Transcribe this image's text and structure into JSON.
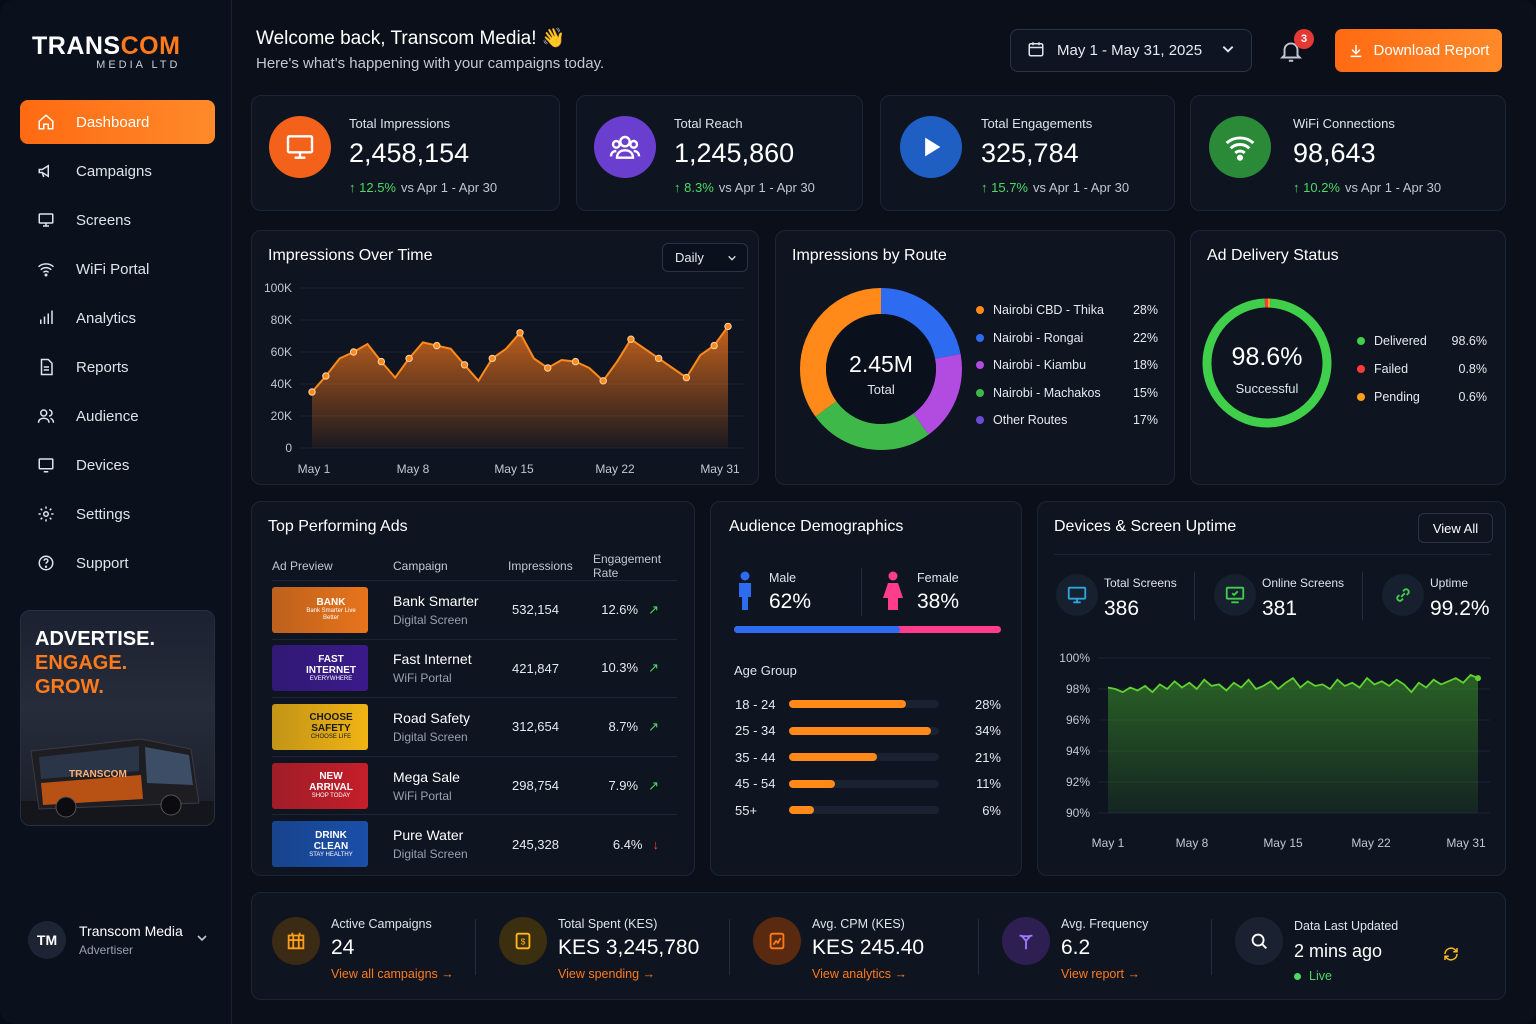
{
  "brand": {
    "name_part1": "TRANS",
    "name_part2": "COM",
    "subtitle": "MEDIA LTD"
  },
  "sidebar": {
    "items": [
      {
        "label": "Dashboard",
        "icon": "home-icon",
        "active": true
      },
      {
        "label": "Campaigns",
        "icon": "megaphone-icon"
      },
      {
        "label": "Screens",
        "icon": "monitor-icon"
      },
      {
        "label": "WiFi Portal",
        "icon": "wifi-icon"
      },
      {
        "label": "Analytics",
        "icon": "bar-chart-icon"
      },
      {
        "label": "Reports",
        "icon": "document-icon"
      },
      {
        "label": "Audience",
        "icon": "users-icon"
      },
      {
        "label": "Devices",
        "icon": "device-icon"
      },
      {
        "label": "Settings",
        "icon": "gear-icon"
      },
      {
        "label": "Support",
        "icon": "help-icon"
      }
    ],
    "promo": {
      "line1": "ADVERTISE.",
      "line2": "ENGAGE.",
      "line3": "GROW.",
      "bus_text": "TRANSCOM"
    },
    "user": {
      "initials": "TM",
      "name": "Transcom Media",
      "role": "Advertiser"
    }
  },
  "header": {
    "title": "Welcome back, Transcom Media! 👋",
    "subtitle": "Here's what's happening with your campaigns today.",
    "date_range": "May 1 - May 31, 2025",
    "notifications": "3",
    "download_label": "Download Report"
  },
  "kpis": [
    {
      "label": "Total Impressions",
      "value": "2,458,154",
      "change": "12.5%",
      "vs": "vs Apr 1 - Apr 30",
      "color": "#f4611b",
      "icon": "monitor-icon"
    },
    {
      "label": "Total Reach",
      "value": "1,245,860",
      "change": "8.3%",
      "vs": "vs Apr 1 - Apr 30",
      "color": "#6a3fd0",
      "icon": "users-icon"
    },
    {
      "label": "Total Engagements",
      "value": "325,784",
      "change": "15.7%",
      "vs": "vs Apr 1 - Apr 30",
      "color": "#1f5fc4",
      "icon": "play-icon"
    },
    {
      "label": "WiFi Connections",
      "value": "98,643",
      "change": "10.2%",
      "vs": "vs Apr 1 - Apr 30",
      "color": "#2a8a38",
      "icon": "wifi-icon"
    }
  ],
  "impressions_chart": {
    "title": "Impressions Over Time",
    "granularity": "Daily",
    "chart_data": {
      "type": "area",
      "x": [
        1,
        2,
        3,
        4,
        5,
        6,
        7,
        8,
        9,
        10,
        11,
        12,
        13,
        14,
        15,
        16,
        17,
        18,
        19,
        20,
        21,
        22,
        23,
        24,
        25,
        26,
        27,
        28,
        29,
        30,
        31
      ],
      "values": [
        35000,
        45000,
        56000,
        60000,
        65000,
        54000,
        44000,
        56000,
        66000,
        64000,
        62000,
        52000,
        42000,
        56000,
        62000,
        72000,
        56000,
        50000,
        55000,
        54000,
        50000,
        42000,
        54000,
        68000,
        62000,
        56000,
        50000,
        44000,
        58000,
        64000,
        76000
      ],
      "x_tick_labels": [
        "May 1",
        "May 8",
        "May 15",
        "May 22",
        "May 31"
      ],
      "y_tick_labels": [
        "100K",
        "80K",
        "60K",
        "40K",
        "20K",
        "0"
      ],
      "ylim": [
        0,
        100000
      ],
      "color": "#ff8a1a"
    }
  },
  "route_chart": {
    "title": "Impressions by Route",
    "center_value": "2.45M",
    "center_label": "Total",
    "chart_data": {
      "type": "pie",
      "categories": [
        "Nairobi CBD - Thika",
        "Nairobi - Rongai",
        "Nairobi - Kiambu",
        "Nairobi - Machakos",
        "Other Routes"
      ],
      "values": [
        28,
        22,
        18,
        15,
        17
      ],
      "labels": [
        "28%",
        "22%",
        "18%",
        "15%",
        "17%"
      ],
      "colors": [
        "#ff8a1a",
        "#2d6cf0",
        "#b24be0",
        "#3fb84a",
        "#6b4bd6"
      ],
      "drawn_order_colors": [
        "#2d6cf0",
        "#b24be0",
        "#3fb84a",
        "#ff8a1a"
      ]
    }
  },
  "delivery": {
    "title": "Ad Delivery Status",
    "center_value": "98.6%",
    "center_label": "Successful",
    "chart_data": {
      "type": "pie",
      "categories": [
        "Delivered",
        "Failed",
        "Pending"
      ],
      "values": [
        98.6,
        0.8,
        0.6
      ],
      "labels": [
        "98.6%",
        "0.8%",
        "0.6%"
      ],
      "colors": [
        "#3fcf4a",
        "#ff3b3b",
        "#ff9f1a"
      ]
    }
  },
  "top_ads": {
    "title": "Top Performing Ads",
    "columns": [
      "Ad Preview",
      "Campaign",
      "Impressions",
      "Engagement Rate"
    ],
    "rows": [
      {
        "thumb": "BANK",
        "thumb_sub": "Bank Smarter Live Better",
        "name": "Bank Smarter",
        "channel": "Digital Screen",
        "impressions": "532,154",
        "rate": "12.6%",
        "trend": "up",
        "bg": "#e8741c",
        "fg": "#fff"
      },
      {
        "thumb": "FAST INTERNET",
        "thumb_sub": "EVERYWHERE",
        "name": "Fast Internet",
        "channel": "WiFi Portal",
        "impressions": "421,847",
        "rate": "10.3%",
        "trend": "up",
        "bg": "#3a1a8a",
        "fg": "#fff"
      },
      {
        "thumb": "CHOOSE SAFETY",
        "thumb_sub": "CHOOSE LIFE",
        "name": "Road Safety",
        "channel": "Digital Screen",
        "impressions": "312,654",
        "rate": "8.7%",
        "trend": "up",
        "bg": "#f0b414",
        "fg": "#1a1a1a"
      },
      {
        "thumb": "NEW ARRIVAL",
        "thumb_sub": "SHOP TODAY",
        "name": "Mega Sale",
        "channel": "WiFi Portal",
        "impressions": "298,754",
        "rate": "7.9%",
        "trend": "up",
        "bg": "#c41f2a",
        "fg": "#fff"
      },
      {
        "thumb": "DRINK CLEAN",
        "thumb_sub": "STAY HEALTHY",
        "name": "Pure Water",
        "channel": "Digital Screen",
        "impressions": "245,328",
        "rate": "6.4%",
        "trend": "down",
        "bg": "#1a4fa8",
        "fg": "#fff"
      }
    ]
  },
  "demographics": {
    "title": "Audience Demographics",
    "male_label": "Male",
    "male_value": "62%",
    "male_pct": 62,
    "female_label": "Female",
    "female_value": "38%",
    "age_title": "Age Group",
    "ages": [
      {
        "label": "18 - 24",
        "value": "28%",
        "pct": 28
      },
      {
        "label": "25 - 34",
        "value": "34%",
        "pct": 34
      },
      {
        "label": "35 - 44",
        "value": "21%",
        "pct": 21
      },
      {
        "label": "45 - 54",
        "value": "11%",
        "pct": 11
      },
      {
        "label": "55+",
        "value": "6%",
        "pct": 6
      }
    ]
  },
  "uptime": {
    "title": "Devices & Screen Uptime",
    "view_all": "View All",
    "stats": [
      {
        "label": "Total Screens",
        "value": "386",
        "icon": "monitor-icon",
        "color": "#2aa7e0"
      },
      {
        "label": "Online Screens",
        "value": "381",
        "icon": "monitor-check-icon",
        "color": "#3fcf4a"
      },
      {
        "label": "Uptime",
        "value": "99.2%",
        "icon": "link-icon",
        "color": "#3fcf4a"
      }
    ],
    "chart_data": {
      "type": "area",
      "x_tick_labels": [
        "May 1",
        "May 8",
        "May 15",
        "May 22",
        "May 31"
      ],
      "y_tick_labels": [
        "100%",
        "98%",
        "96%",
        "94%",
        "92%",
        "90%"
      ],
      "ylim": [
        90,
        100
      ],
      "values": [
        98.1,
        98.0,
        97.8,
        98.1,
        97.9,
        98.2,
        97.8,
        98.3,
        98.0,
        98.5,
        98.1,
        98.4,
        98.0,
        98.6,
        98.2,
        98.3,
        97.9,
        98.4,
        98.1,
        98.6,
        98.0,
        98.2,
        98.5,
        98.0,
        98.4,
        98.7,
        98.1,
        98.5,
        98.2,
        98.3,
        98.0,
        98.6,
        98.2,
        98.4,
        98.1,
        98.7,
        98.3,
        98.5,
        98.2,
        98.6,
        98.3,
        97.8,
        98.4,
        98.1,
        98.6,
        98.3,
        98.5,
        98.7,
        98.4,
        98.9,
        98.7
      ],
      "color": "#5fd12f"
    }
  },
  "bottom_stats": [
    {
      "label": "Active Campaigns",
      "value": "24",
      "link": "View all campaigns →",
      "icon": "grid-icon",
      "color": "#3b2a14",
      "icolor": "#ff9f1a"
    },
    {
      "label": "Total Spent (KES)",
      "value": "KES 3,245,780",
      "link": "View spending →",
      "icon": "wallet-icon",
      "color": "#3b2f10",
      "icolor": "#ffb81a"
    },
    {
      "label": "Avg. CPM (KES)",
      "value": "KES 245.40",
      "link": "View analytics →",
      "icon": "chart-doc-icon",
      "color": "#5a2a10",
      "icolor": "#ff7a1a"
    },
    {
      "label": "Avg. Frequency",
      "value": "6.2",
      "link": "View report →",
      "icon": "antenna-icon",
      "color": "#2e1f52",
      "icolor": "#a07aff"
    },
    {
      "label": "Data Last Updated",
      "value": "2 mins ago",
      "link": "Live",
      "icon": "search-icon",
      "color": "#1a2232",
      "icolor": "#ffffff"
    }
  ]
}
